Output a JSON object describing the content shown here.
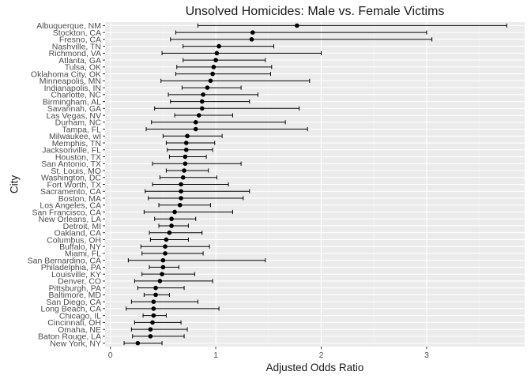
{
  "chart_data": {
    "type": "errorbar",
    "title": "Unsolved Homicides: Male vs. Female Victims",
    "xlabel": "Adjusted Odds Ratio",
    "ylabel": "City",
    "xlim": [
      -0.05,
      3.93
    ],
    "xticks": [
      0,
      1,
      2,
      3
    ],
    "grid": true,
    "legend": "none",
    "colors": {
      "panel": "#ebebeb",
      "grid_major": "#ffffff",
      "grid_minor": "#f4f4f4",
      "mark": "#000000"
    },
    "categories": [
      "New York, NY",
      "Baton Rouge, LA",
      "Omaha, NE",
      "Cincinnati, OH",
      "Chicago, IL",
      "Long Beach, CA",
      "San Diego, CA",
      "Baltimore, MD",
      "Pittsburgh, PA",
      "Denver, CO",
      "Louisville, KY",
      "Philadelphia, PA",
      "San Bernardino, CA",
      "Miami, FL",
      "Buffalo, NY",
      "Columbus, OH",
      "Oakland, CA",
      "Detroit, MI",
      "New Orleans, LA",
      "San Francisco, CA",
      "Los Angeles, CA",
      "Boston, MA",
      "Sacramento, CA",
      "Fort Worth, TX",
      "Washington, DC",
      "St. Louis, MO",
      "San Antonio, TX",
      "Houston, TX",
      "Jacksonville, FL",
      "Memphis, TN",
      "Milwaukee, wI",
      "Tampa, FL",
      "Durham, NC",
      "Las Vegas, NV",
      "Savannah, GA",
      "Birmingham, AL",
      "Charlotte, NC",
      "Indianapolis, IN",
      "Minneapolis, MN",
      "Oklahoma City, OK",
      "Tulsa, OK",
      "Atlanta, GA",
      "Richmond, VA",
      "Nashville, TN",
      "Fresno, CA",
      "Stockton, CA",
      "Albuquerque, NM"
    ],
    "estimate": [
      0.26,
      0.38,
      0.38,
      0.4,
      0.41,
      0.41,
      0.41,
      0.43,
      0.43,
      0.47,
      0.49,
      0.5,
      0.5,
      0.52,
      0.52,
      0.53,
      0.56,
      0.58,
      0.58,
      0.61,
      0.66,
      0.67,
      0.67,
      0.67,
      0.69,
      0.7,
      0.71,
      0.71,
      0.72,
      0.72,
      0.73,
      0.81,
      0.81,
      0.84,
      0.87,
      0.87,
      0.88,
      0.92,
      0.95,
      0.97,
      0.98,
      1.0,
      1.01,
      1.03,
      1.34,
      1.35,
      1.77
    ],
    "ci_low": [
      0.13,
      0.21,
      0.2,
      0.23,
      0.31,
      0.15,
      0.2,
      0.32,
      0.26,
      0.23,
      0.3,
      0.37,
      0.17,
      0.3,
      0.29,
      0.38,
      0.37,
      0.46,
      0.42,
      0.32,
      0.46,
      0.36,
      0.33,
      0.4,
      0.47,
      0.53,
      0.4,
      0.56,
      0.54,
      0.53,
      0.5,
      0.34,
      0.39,
      0.61,
      0.42,
      0.57,
      0.55,
      0.68,
      0.48,
      0.62,
      0.63,
      0.69,
      0.49,
      0.69,
      0.57,
      0.62,
      0.83
    ],
    "ci_high": [
      0.49,
      0.7,
      0.73,
      0.67,
      0.53,
      1.03,
      0.83,
      0.56,
      0.7,
      0.97,
      0.8,
      0.65,
      1.47,
      0.88,
      0.94,
      0.74,
      0.87,
      0.74,
      0.81,
      1.16,
      0.95,
      1.26,
      1.32,
      1.12,
      1.01,
      0.93,
      1.24,
      0.91,
      0.97,
      0.99,
      1.06,
      1.87,
      1.66,
      1.16,
      1.79,
      1.32,
      1.4,
      1.24,
      1.89,
      1.52,
      1.53,
      1.47,
      2.0,
      1.55,
      3.05,
      3.0,
      3.76
    ]
  }
}
